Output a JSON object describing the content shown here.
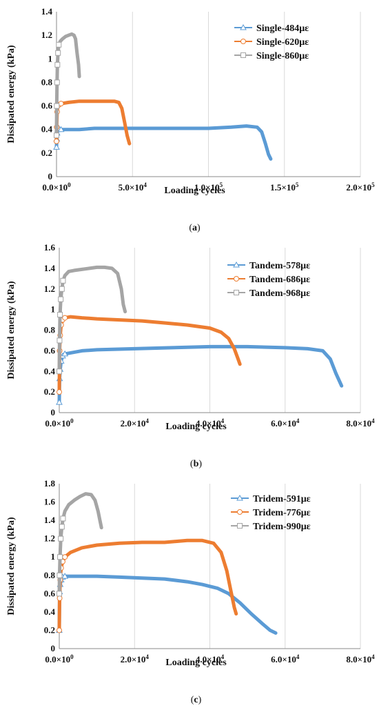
{
  "colors": {
    "blue": "#5b9bd5",
    "orange": "#ed7d31",
    "gray": "#a5a5a5",
    "grid": "#d9d9d9",
    "axis": "#888888"
  },
  "chart_data": [
    {
      "type": "line",
      "caption": "a",
      "xlabel": "Loading cycles",
      "ylabel": "Dissipated energy (kPa)",
      "xlim": [
        0,
        200000
      ],
      "ylim": [
        0,
        1.4
      ],
      "xticks": [
        0,
        50000,
        100000,
        150000,
        200000
      ],
      "xtick_labels": [
        [
          "0.0",
          "0"
        ],
        [
          "5.0",
          "4"
        ],
        [
          "1.0",
          "5"
        ],
        [
          "1.5",
          "5"
        ],
        [
          "2.0",
          "5"
        ]
      ],
      "yticks": [
        0,
        0.2,
        0.4,
        0.6,
        0.8,
        1,
        1.2,
        1.4
      ],
      "ytick_labels": [
        "0",
        "0.2",
        "0.4",
        "0.6",
        "0.8",
        "1",
        "1.2",
        "1.4"
      ],
      "grid": "vertical",
      "legend_position": "top-right",
      "series": [
        {
          "name": "Single-484με",
          "color": "#5b9bd5",
          "marker": "triangle",
          "x": [
            0,
            150,
            400,
            800,
            1500,
            3000,
            8000,
            15000,
            25000,
            40000,
            60000,
            80000,
            100000,
            115000,
            125000,
            132000,
            135000,
            137500,
            139500,
            141000
          ],
          "y": [
            0.25,
            0.32,
            0.37,
            0.4,
            0.41,
            0.4,
            0.4,
            0.4,
            0.41,
            0.41,
            0.41,
            0.41,
            0.41,
            0.42,
            0.43,
            0.42,
            0.38,
            0.28,
            0.19,
            0.15
          ]
        },
        {
          "name": "Single-620με",
          "color": "#ed7d31",
          "marker": "circle",
          "x": [
            0,
            150,
            400,
            800,
            1500,
            3000,
            8000,
            15000,
            22000,
            30000,
            38000,
            41000,
            43000,
            45000,
            46500,
            48000
          ],
          "y": [
            0.3,
            0.42,
            0.55,
            0.6,
            0.61,
            0.62,
            0.63,
            0.64,
            0.64,
            0.64,
            0.64,
            0.63,
            0.58,
            0.45,
            0.35,
            0.28
          ]
        },
        {
          "name": "Single-860με",
          "color": "#a5a5a5",
          "marker": "square",
          "x": [
            0,
            150,
            350,
            600,
            1000,
            1500,
            2500,
            4000,
            6000,
            8000,
            10000,
            11500,
            12500,
            13500,
            14500,
            15000
          ],
          "y": [
            0.35,
            0.6,
            0.8,
            0.95,
            1.05,
            1.12,
            1.15,
            1.17,
            1.19,
            1.2,
            1.21,
            1.2,
            1.17,
            1.05,
            0.95,
            0.85
          ]
        }
      ]
    },
    {
      "type": "line",
      "caption": "b",
      "xlabel": "Loading cycles",
      "ylabel": "Dissipated energy (kPa)",
      "xlim": [
        0,
        80000
      ],
      "ylim": [
        0,
        1.6
      ],
      "xticks": [
        0,
        20000,
        40000,
        60000,
        80000
      ],
      "xtick_labels": [
        [
          "0.0",
          "0"
        ],
        [
          "2.0",
          "4"
        ],
        [
          "4.0",
          "4"
        ],
        [
          "6.0",
          "4"
        ],
        [
          "8.0",
          "4"
        ]
      ],
      "yticks": [
        0,
        0.2,
        0.4,
        0.6,
        0.8,
        1,
        1.2,
        1.4,
        1.6
      ],
      "ytick_labels": [
        "0",
        "0.2",
        "0.4",
        "0.6",
        "0.8",
        "1",
        "1.2",
        "1.4",
        "1.6"
      ],
      "grid": "vertical",
      "legend_position": "top-right",
      "series": [
        {
          "name": "Tandem-578με",
          "color": "#5b9bd5",
          "marker": "triangle",
          "x": [
            0,
            100,
            250,
            500,
            900,
            1500,
            3000,
            6000,
            10000,
            20000,
            30000,
            40000,
            50000,
            60000,
            66000,
            70000,
            72000,
            73500,
            75000
          ],
          "y": [
            0.1,
            0.33,
            0.42,
            0.5,
            0.55,
            0.57,
            0.58,
            0.6,
            0.61,
            0.62,
            0.63,
            0.64,
            0.64,
            0.63,
            0.62,
            0.6,
            0.52,
            0.38,
            0.26
          ]
        },
        {
          "name": "Tandem-686με",
          "color": "#ed7d31",
          "marker": "circle",
          "x": [
            0,
            100,
            250,
            500,
            900,
            1500,
            3000,
            6000,
            10000,
            16000,
            22000,
            28000,
            34000,
            40000,
            43000,
            45000,
            46500,
            47500,
            48000
          ],
          "y": [
            0.2,
            0.6,
            0.75,
            0.85,
            0.9,
            0.92,
            0.93,
            0.92,
            0.91,
            0.9,
            0.89,
            0.87,
            0.85,
            0.82,
            0.78,
            0.72,
            0.62,
            0.52,
            0.47
          ]
        },
        {
          "name": "Tandem-968με",
          "color": "#a5a5a5",
          "marker": "square",
          "x": [
            0,
            80,
            200,
            400,
            700,
            1000,
            1500,
            2500,
            4000,
            6000,
            8000,
            10000,
            12000,
            14000,
            15500,
            16500,
            17000,
            17500
          ],
          "y": [
            0.4,
            0.7,
            0.95,
            1.1,
            1.2,
            1.28,
            1.33,
            1.37,
            1.38,
            1.39,
            1.4,
            1.41,
            1.41,
            1.4,
            1.35,
            1.2,
            1.05,
            0.98
          ]
        }
      ]
    },
    {
      "type": "line",
      "caption": "c",
      "xlabel": "Loading cycles",
      "ylabel": "Dissipated energy (kPa)",
      "xlim": [
        0,
        80000
      ],
      "ylim": [
        0,
        1.8
      ],
      "xticks": [
        0,
        20000,
        40000,
        60000,
        80000
      ],
      "xtick_labels": [
        [
          "0.0",
          "0"
        ],
        [
          "2.0",
          "4"
        ],
        [
          "4.0",
          "4"
        ],
        [
          "6.0",
          "4"
        ],
        [
          "8.0",
          "4"
        ]
      ],
      "yticks": [
        0,
        0.2,
        0.4,
        0.6,
        0.8,
        1,
        1.2,
        1.4,
        1.6,
        1.8
      ],
      "ytick_labels": [
        "0",
        "0.2",
        "0.4",
        "0.6",
        "0.8",
        "1",
        "1.2",
        "1.4",
        "1.6",
        "1.8"
      ],
      "grid": "vertical",
      "legend_position": "top-right",
      "series": [
        {
          "name": "Tridem-591με",
          "color": "#5b9bd5",
          "marker": "triangle",
          "x": [
            0,
            100,
            250,
            500,
            900,
            1500,
            3000,
            6000,
            10000,
            16000,
            22000,
            28000,
            34000,
            38000,
            42000,
            45000,
            48000,
            51000,
            54000,
            56000,
            57500
          ],
          "y": [
            0.2,
            0.62,
            0.7,
            0.75,
            0.78,
            0.79,
            0.79,
            0.79,
            0.79,
            0.78,
            0.77,
            0.76,
            0.73,
            0.7,
            0.66,
            0.6,
            0.5,
            0.38,
            0.27,
            0.2,
            0.17
          ]
        },
        {
          "name": "Tridem-776με",
          "color": "#ed7d31",
          "marker": "circle",
          "x": [
            0,
            100,
            250,
            500,
            900,
            1500,
            3000,
            6000,
            10000,
            16000,
            22000,
            28000,
            34000,
            38000,
            41000,
            43000,
            44500,
            45500,
            46500,
            47000
          ],
          "y": [
            0.2,
            0.55,
            0.75,
            0.88,
            0.95,
            1.0,
            1.05,
            1.1,
            1.13,
            1.15,
            1.16,
            1.16,
            1.18,
            1.18,
            1.15,
            1.05,
            0.85,
            0.65,
            0.45,
            0.38
          ]
        },
        {
          "name": "Tridem-990με",
          "color": "#a5a5a5",
          "marker": "square",
          "x": [
            0,
            80,
            200,
            400,
            700,
            1000,
            1500,
            2500,
            4000,
            5500,
            7000,
            8500,
            9500,
            10300,
            10800,
            11200
          ],
          "y": [
            0.6,
            0.8,
            1.0,
            1.2,
            1.33,
            1.42,
            1.5,
            1.57,
            1.62,
            1.66,
            1.69,
            1.68,
            1.62,
            1.5,
            1.4,
            1.32
          ]
        }
      ]
    }
  ]
}
